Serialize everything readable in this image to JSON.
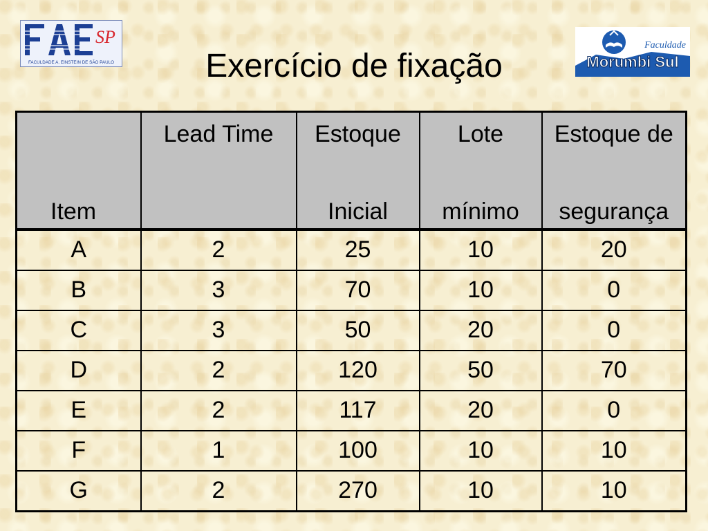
{
  "title": "Exercício de fixação",
  "logos": {
    "left": {
      "text": "FAE",
      "superscript": "SP",
      "caption": "FACULDADE A. EINSTEIN DE SÃO PAULO"
    },
    "right": {
      "script_text": "Faculdade",
      "name": "Morumbi Sul"
    }
  },
  "table": {
    "headers": [
      {
        "top": "",
        "bottom": "Item"
      },
      {
        "top": "Lead Time",
        "bottom": ""
      },
      {
        "top": "Estoque",
        "bottom": "Inicial"
      },
      {
        "top": "Lote",
        "bottom": "mínimo"
      },
      {
        "top": "Estoque de",
        "bottom": "segurança"
      }
    ],
    "rows": [
      [
        "A",
        "2",
        "25",
        "10",
        "20"
      ],
      [
        "B",
        "3",
        "70",
        "10",
        "0"
      ],
      [
        "C",
        "3",
        "50",
        "20",
        "0"
      ],
      [
        "D",
        "2",
        "120",
        "50",
        "70"
      ],
      [
        "E",
        "2",
        "117",
        "20",
        "0"
      ],
      [
        "F",
        "1",
        "100",
        "10",
        "10"
      ],
      [
        "G",
        "2",
        "270",
        "10",
        "10"
      ]
    ]
  },
  "colors": {
    "header_bg": "#c1c1c1",
    "background": "#f7efd2",
    "fae_blue": "#1c3f94",
    "esp_red": "#d8262c",
    "morumbi_blue": "#1d5bb0"
  }
}
